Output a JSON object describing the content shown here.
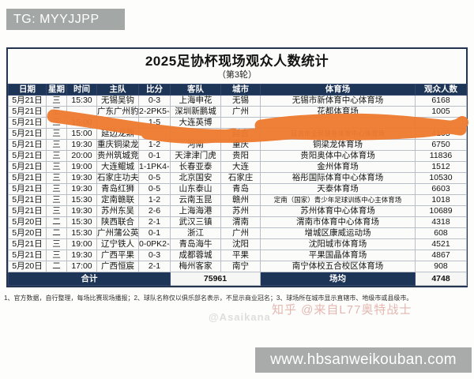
{
  "watermarks": {
    "tg": "TG: MYYJJPP",
    "asaikana": "@Asaikana",
    "zhihu": "知乎 @来自L77奥特战士",
    "site": "www.hbsanweikouban.com"
  },
  "table": {
    "title": "2025足协杯现场观众人数统计",
    "subtitle": "（第3轮）",
    "columns": [
      "日期",
      "星期",
      "时间",
      "主队",
      "比分",
      "客队",
      "城市",
      "体育场",
      "观众人数"
    ],
    "rows": [
      [
        "5月21日",
        "三",
        "15:30",
        "无锡吴钩",
        "0-3",
        "上海申花",
        "无锡",
        "无锡市新体育中心体育场",
        "6168"
      ],
      [
        "5月21日",
        "三",
        "",
        "广东广州豹",
        "2-2PK5-4",
        "深圳新鹏城",
        "广州",
        "花都体育场",
        "1005"
      ],
      [
        "5月21日",
        "三",
        "15:00",
        "",
        "1-5",
        "大连英博",
        "",
        "",
        ""
      ],
      [
        "5月21日",
        "三",
        "15:00",
        "延边龙鼎",
        "",
        "",
        "延吉",
        "延吉市全民健身体育中心体育场",
        "4105"
      ],
      [
        "5月21日",
        "三",
        "19:30",
        "重庆铜梁龙",
        "1-2",
        "河南",
        "重庆",
        "铜梁龙体育场",
        "6750"
      ],
      [
        "5月21日",
        "三",
        "20:00",
        "贵州筑城竞技",
        "0-1",
        "天津津门虎",
        "贵阳",
        "贵阳奥体中心体育场",
        "11836"
      ],
      [
        "5月21日",
        "三",
        "19:00",
        "大连鲲城",
        "1-1PK4-3",
        "长春亚泰",
        "大连",
        "金州体育场",
        "1512"
      ],
      [
        "5月21日",
        "三",
        "19:30",
        "石家庄功夫",
        "0-5",
        "北京国安",
        "石家庄",
        "裕彤国际体育中心体育场",
        "10530"
      ],
      [
        "5月21日",
        "三",
        "19:30",
        "青岛红狮",
        "0-5",
        "山东泰山",
        "青岛",
        "天泰体育场",
        "6603"
      ],
      [
        "5月21日",
        "三",
        "15:30",
        "定南赣联",
        "1-2",
        "云南玉昆",
        "赣州",
        "定南（国家）青少年足球训练中心主体育场",
        "1018"
      ],
      [
        "5月21日",
        "三",
        "19:30",
        "苏州东吴",
        "2-6",
        "上海海港",
        "苏州",
        "苏州体育中心体育场",
        "10689"
      ],
      [
        "5月20日",
        "二",
        "15:30",
        "陕西联合",
        "2-1",
        "武汉三镇",
        "渭南",
        "渭南市体育中心体育场",
        "4318"
      ],
      [
        "5月20日",
        "二",
        "15:30",
        "广州蒲公英",
        "0-1",
        "浙江",
        "广州",
        "增城区康威运动场",
        "608"
      ],
      [
        "5月21日",
        "三",
        "19:00",
        "辽宁铁人",
        "0-0PK2-4",
        "青岛海牛",
        "沈阳",
        "沈阳城市体育场",
        "4521"
      ],
      [
        "5月21日",
        "三",
        "19:30",
        "广西平果",
        "0-3",
        "成都蓉城",
        "平果",
        "平果国晶体育场",
        "4867"
      ],
      [
        "5月20日",
        "二",
        "17:00",
        "广西恒宸",
        "2-1",
        "梅州客家",
        "南宁",
        "南宁体校五合校区体育场",
        "908"
      ]
    ],
    "total_label": "合计",
    "total_value": "75961",
    "avg_label": "场均",
    "avg_value": "4748",
    "footnote": "1、官方数据，自行整理，每场比赛现场播报；2、球队名称仅以俱乐部名表示，不显示商业冠名；3、球场所在城市显示直辖市、地级市或县级市。"
  },
  "colors": {
    "header_bg": "#1d3557",
    "grid_line": "#b9bec7",
    "marker_orange": "#ee7b31",
    "watermark_gray": "#a3a7a6",
    "zhihu_red": "#e0aba4"
  }
}
